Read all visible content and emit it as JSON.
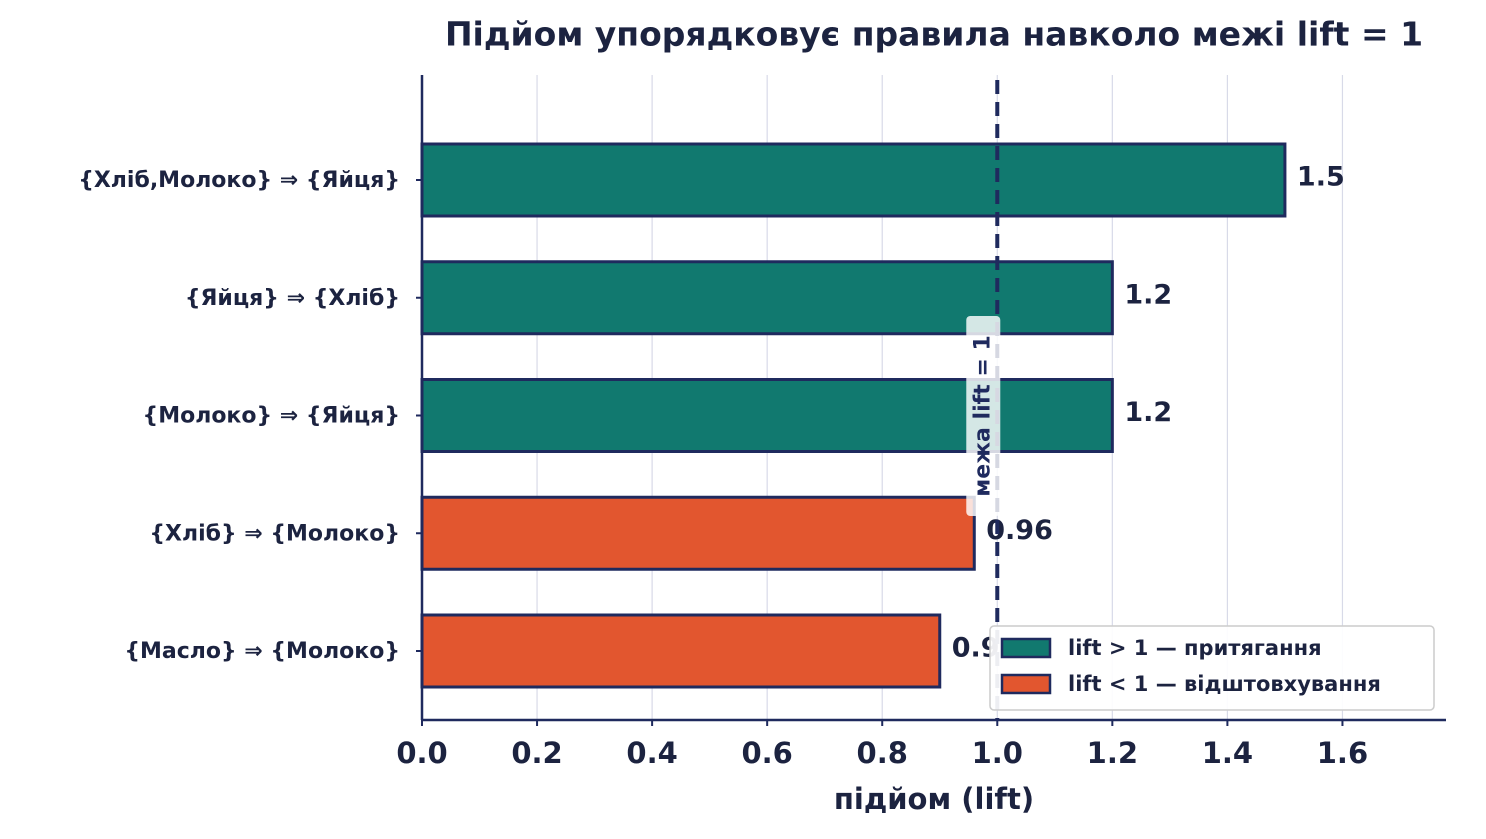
{
  "chart_data": {
    "type": "barh",
    "title": "Підйом упорядковує правила навколо межі lift = 1",
    "x_label": "підйом (lift)",
    "categories": [
      "{Хліб,Молоко} ⇒ {Яйця}",
      "{Яйця} ⇒ {Хліб}",
      "{Молоко} ⇒ {Яйця}",
      "{Хліб} ⇒ {Молоко}",
      "{Масло} ⇒ {Молоко}"
    ],
    "values": [
      1.5,
      1.2,
      1.2,
      0.96,
      0.9
    ],
    "colors": [
      "#11796f",
      "#11796f",
      "#11796f",
      "#e2562f",
      "#e2562f"
    ],
    "edge_color": "#1f2a5e",
    "xlim": [
      0,
      1.78
    ],
    "xticks": [
      {
        "value": 0,
        "label": "0.0"
      },
      0.2,
      0.4,
      0.6,
      0.8,
      {
        "value": 1,
        "label": "1.0"
      },
      1.2,
      1.4,
      1.6
    ],
    "grid": true,
    "threshold": {
      "value": 1,
      "label": "межа lift = 1"
    },
    "legend": {
      "position": "lower right",
      "entries": [
        {
          "name": "lift > 1 — притягання",
          "color": "#11796f"
        },
        {
          "name": "lift < 1 — відштовхування",
          "color": "#e2562f"
        }
      ]
    }
  }
}
